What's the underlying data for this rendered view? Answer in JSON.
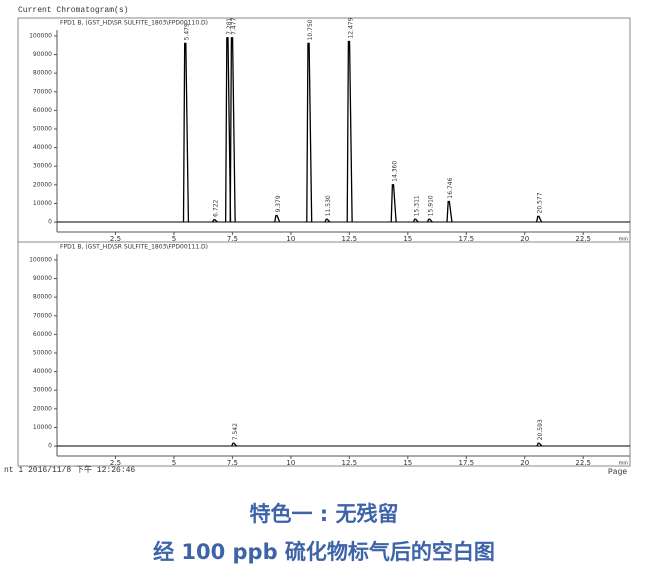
{
  "window_title": "Current Chromatogram(s)",
  "chart_data": [
    {
      "type": "line",
      "subtitle": "FPD1 B, (GST_HD\\SR SULFITE_1803\\FPD00110.D)",
      "x_label": "min",
      "x": [
        5.479,
        6.722,
        7.281,
        7.477,
        9.379,
        10.75,
        11.53,
        12.479,
        14.36,
        15.311,
        15.91,
        16.746,
        20.577
      ],
      "x_labels": [
        "5.479",
        "6.722",
        "7.281",
        "7.477",
        "9.379",
        "10.750",
        "11.530",
        "12.479",
        "14.360",
        "15.311",
        "15.910",
        "16.746",
        "20.577"
      ],
      "values": [
        96000,
        1200,
        99000,
        99000,
        3500,
        96000,
        1500,
        97000,
        20000,
        1500,
        1500,
        11000,
        3000
      ],
      "color": "#000000",
      "xlim": [
        0,
        24.5
      ],
      "xticks": [
        2.5,
        5,
        7.5,
        10,
        12.5,
        15,
        17.5,
        20,
        22.5
      ],
      "ylim": [
        -3200,
        103200
      ],
      "yticks": [
        0,
        10000,
        20000,
        30000,
        40000,
        50000,
        60000,
        70000,
        80000,
        90000,
        100000
      ]
    },
    {
      "type": "line",
      "subtitle": "FPD1 B, (GST_HD\\SR SULFITE_1803\\FPD00111.D)",
      "x_label": "min",
      "x": [
        7.542,
        20.593
      ],
      "x_labels": [
        "7.542",
        "20.593"
      ],
      "values": [
        1500,
        1500
      ],
      "color": "#000000",
      "xlim": [
        0,
        24.5
      ],
      "xticks": [
        2.5,
        5,
        7.5,
        10,
        12.5,
        15,
        17.5,
        20,
        22.5
      ],
      "ylim": [
        -3200,
        103200
      ],
      "yticks": [
        0,
        10000,
        20000,
        30000,
        40000,
        50000,
        60000,
        70000,
        80000,
        90000,
        100000
      ]
    }
  ],
  "footer": {
    "left": "nt 1 2016/11/8 下午 12:26:46",
    "right": "Page"
  },
  "caption": [
    "特色一 : 无残留",
    "经 100 ppb 硫化物标气后的空白图"
  ]
}
